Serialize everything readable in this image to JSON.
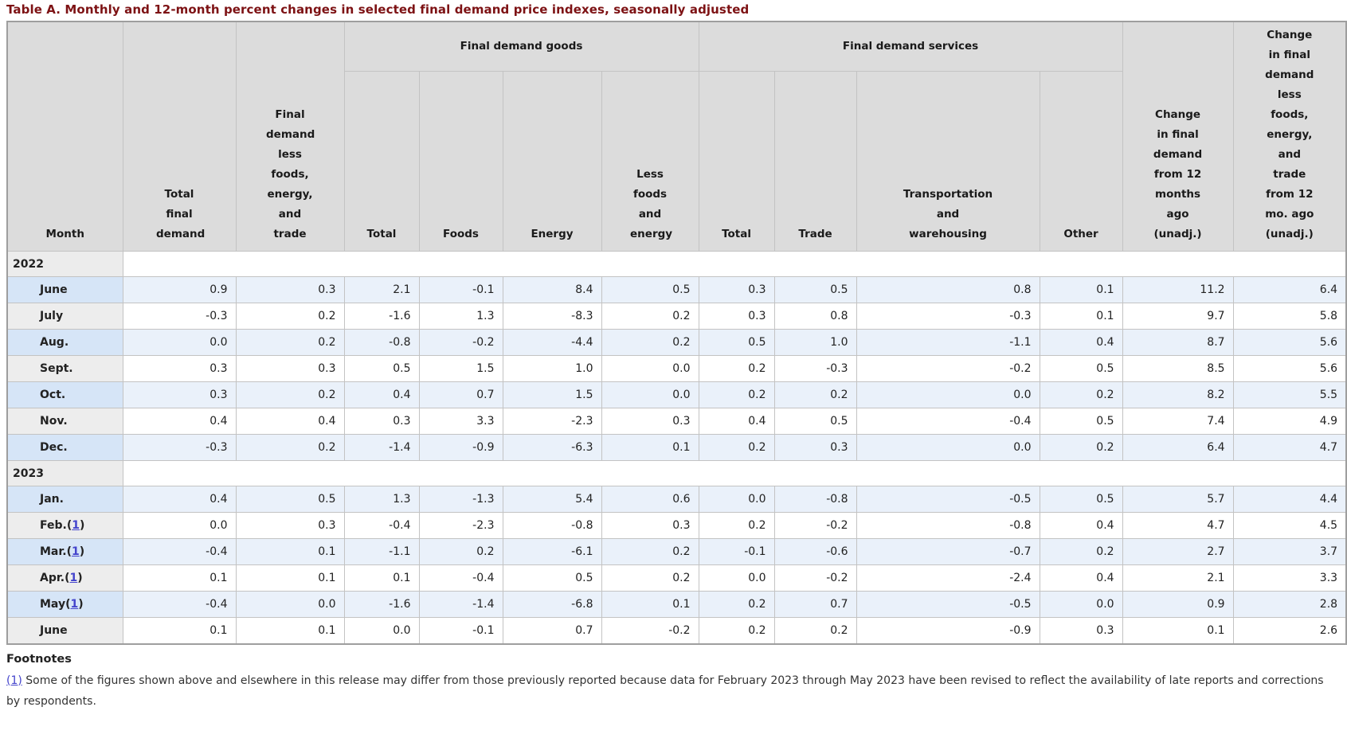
{
  "title": "Table A. Monthly and 12-month percent changes in selected final demand price indexes, seasonally adjusted",
  "colors": {
    "title_text": "#7d1214",
    "header_bg": "#dcdcdc",
    "row_stripe_blue": "#eaf1fa",
    "month_stripe_blue": "#d6e5f7",
    "link_blue": "#4444cc"
  },
  "table": {
    "col_headers": {
      "month": "Month",
      "total_final_demand": "Total final demand",
      "fd_less_foods_energy_trade": "Final demand less foods, energy, and trade",
      "goods_total": "Total",
      "goods_foods": "Foods",
      "goods_energy": "Energy",
      "goods_less_foods_energy": "Less foods and energy",
      "services_total": "Total",
      "services_trade": "Trade",
      "services_transport_warehousing": "Transportation and warehousing",
      "services_other": "Other",
      "change_12mo": "Change in final demand from 12 months ago (unadj.)",
      "change_12mo_less": "Change in final demand less foods, energy, and trade from 12 mo. ago (unadj.)"
    },
    "group_headers": {
      "goods": "Final demand goods",
      "services": "Final demand services"
    },
    "rows": [
      {
        "type": "year",
        "label": "2022"
      },
      {
        "type": "month",
        "label": "June",
        "footnote": null,
        "shaded": true,
        "values": [
          "0.9",
          "0.3",
          "2.1",
          "-0.1",
          "8.4",
          "0.5",
          "0.3",
          "0.5",
          "0.8",
          "0.1",
          "11.2",
          "6.4"
        ]
      },
      {
        "type": "month",
        "label": "July",
        "footnote": null,
        "shaded": false,
        "values": [
          "-0.3",
          "0.2",
          "-1.6",
          "1.3",
          "-8.3",
          "0.2",
          "0.3",
          "0.8",
          "-0.3",
          "0.1",
          "9.7",
          "5.8"
        ]
      },
      {
        "type": "month",
        "label": "Aug.",
        "footnote": null,
        "shaded": true,
        "values": [
          "0.0",
          "0.2",
          "-0.8",
          "-0.2",
          "-4.4",
          "0.2",
          "0.5",
          "1.0",
          "-1.1",
          "0.4",
          "8.7",
          "5.6"
        ]
      },
      {
        "type": "month",
        "label": "Sept.",
        "footnote": null,
        "shaded": false,
        "values": [
          "0.3",
          "0.3",
          "0.5",
          "1.5",
          "1.0",
          "0.0",
          "0.2",
          "-0.3",
          "-0.2",
          "0.5",
          "8.5",
          "5.6"
        ]
      },
      {
        "type": "month",
        "label": "Oct.",
        "footnote": null,
        "shaded": true,
        "values": [
          "0.3",
          "0.2",
          "0.4",
          "0.7",
          "1.5",
          "0.0",
          "0.2",
          "0.2",
          "0.0",
          "0.2",
          "8.2",
          "5.5"
        ]
      },
      {
        "type": "month",
        "label": "Nov.",
        "footnote": null,
        "shaded": false,
        "values": [
          "0.4",
          "0.4",
          "0.3",
          "3.3",
          "-2.3",
          "0.3",
          "0.4",
          "0.5",
          "-0.4",
          "0.5",
          "7.4",
          "4.9"
        ]
      },
      {
        "type": "month",
        "label": "Dec.",
        "footnote": null,
        "shaded": true,
        "values": [
          "-0.3",
          "0.2",
          "-1.4",
          "-0.9",
          "-6.3",
          "0.1",
          "0.2",
          "0.3",
          "0.0",
          "0.2",
          "6.4",
          "4.7"
        ]
      },
      {
        "type": "year",
        "label": "2023"
      },
      {
        "type": "month",
        "label": "Jan.",
        "footnote": null,
        "shaded": true,
        "values": [
          "0.4",
          "0.5",
          "1.3",
          "-1.3",
          "5.4",
          "0.6",
          "0.0",
          "-0.8",
          "-0.5",
          "0.5",
          "5.7",
          "4.4"
        ]
      },
      {
        "type": "month",
        "label": "Feb.",
        "footnote": "1",
        "shaded": false,
        "values": [
          "0.0",
          "0.3",
          "-0.4",
          "-2.3",
          "-0.8",
          "0.3",
          "0.2",
          "-0.2",
          "-0.8",
          "0.4",
          "4.7",
          "4.5"
        ]
      },
      {
        "type": "month",
        "label": "Mar.",
        "footnote": "1",
        "shaded": true,
        "values": [
          "-0.4",
          "0.1",
          "-1.1",
          "0.2",
          "-6.1",
          "0.2",
          "-0.1",
          "-0.6",
          "-0.7",
          "0.2",
          "2.7",
          "3.7"
        ]
      },
      {
        "type": "month",
        "label": "Apr.",
        "footnote": "1",
        "shaded": false,
        "values": [
          "0.1",
          "0.1",
          "0.1",
          "-0.4",
          "0.5",
          "0.2",
          "0.0",
          "-0.2",
          "-2.4",
          "0.4",
          "2.1",
          "3.3"
        ]
      },
      {
        "type": "month",
        "label": "May",
        "footnote": "1",
        "shaded": true,
        "values": [
          "-0.4",
          "0.0",
          "-1.6",
          "-1.4",
          "-6.8",
          "0.1",
          "0.2",
          "0.7",
          "-0.5",
          "0.0",
          "0.9",
          "2.8"
        ]
      },
      {
        "type": "month",
        "label": "June",
        "footnote": null,
        "shaded": false,
        "values": [
          "0.1",
          "0.1",
          "0.0",
          "-0.1",
          "0.7",
          "-0.2",
          "0.2",
          "0.2",
          "-0.9",
          "0.3",
          "0.1",
          "2.6"
        ]
      }
    ]
  },
  "footnotes": {
    "heading": "Footnotes",
    "items": [
      {
        "marker": "(1)",
        "text": "Some of the figures shown above and elsewhere in this release may differ from those previously reported because data for February 2023 through May 2023 have been revised to reflect the availability of late reports and corrections by respondents."
      }
    ]
  }
}
